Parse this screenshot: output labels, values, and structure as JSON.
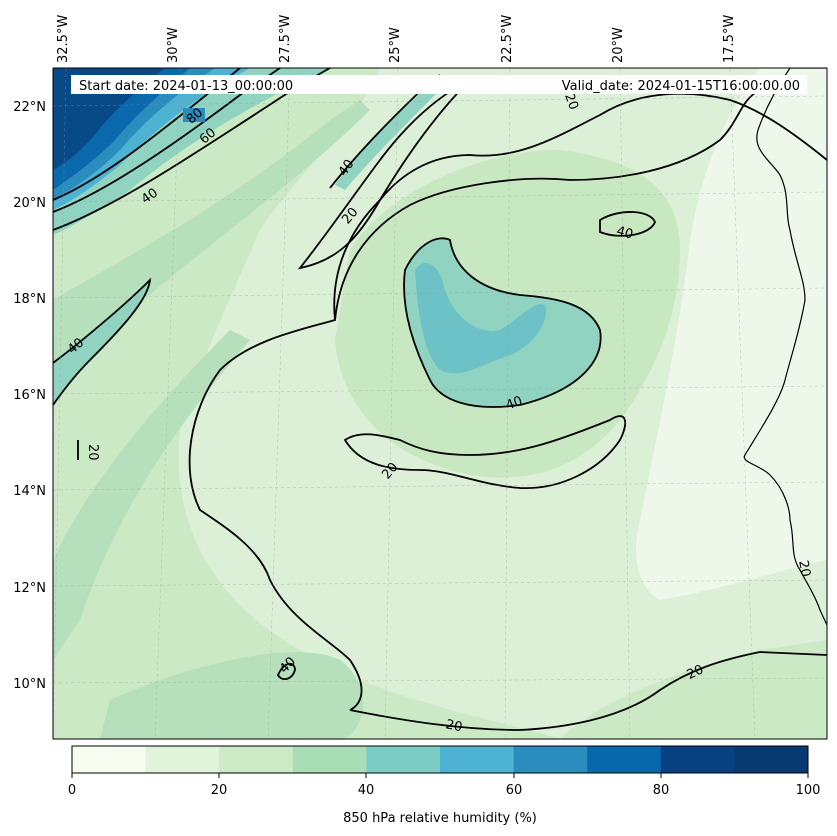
{
  "header": {
    "start_label": "Start date: 2024-01-13_00:00:00",
    "valid_label": "Valid_date: 2024-01-15T16:00:00.00"
  },
  "axes": {
    "lon_labels": [
      "32.5°W",
      "30°W",
      "27.5°W",
      "25°W",
      "22.5°W",
      "20°W",
      "17.5°W"
    ],
    "lat_labels": [
      "22°N",
      "20°N",
      "18°N",
      "16°N",
      "14°N",
      "12°N",
      "10°N"
    ]
  },
  "contour_labels": [
    "80",
    "60",
    "40",
    "20",
    "40",
    "20",
    "40",
    "40",
    "40",
    "20",
    "20",
    "20",
    "40",
    "20",
    "20",
    "20"
  ],
  "colorbar": {
    "title": "850 hPa relative humidity (%)",
    "ticks": [
      "0",
      "20",
      "40",
      "60",
      "80",
      "100"
    ],
    "colors": [
      "#f7fcf0",
      "#e0f3db",
      "#ccebc5",
      "#a8ddb5",
      "#7bccc4",
      "#4eb3d3",
      "#2b8cbe",
      "#0868ac",
      "#084081",
      "#063a70"
    ]
  },
  "colors": {
    "ocean_base": "#dcefd7",
    "dry_land": "#eef8ea"
  }
}
